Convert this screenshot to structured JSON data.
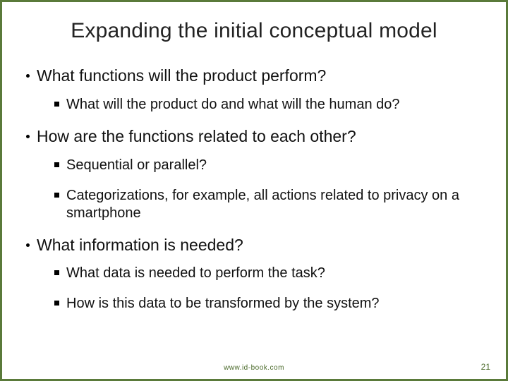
{
  "slide": {
    "border_color": "#5a7a3a",
    "background_color": "#ffffff",
    "title": "Expanding the initial conceptual model",
    "title_fontsize": 30,
    "title_color": "#222222",
    "l1_fontsize": 23,
    "l2_fontsize": 20,
    "text_color": "#111111",
    "footer_color": "#4a6a2a",
    "bullets": [
      {
        "text": "What functions will the product perform?",
        "sub": [
          "What will the product do and what will the human do?"
        ]
      },
      {
        "text": "How are the functions related to each other?",
        "sub": [
          "Sequential or parallel?",
          "Categorizations, for example, all actions related to privacy on a smartphone"
        ]
      },
      {
        "text": "What information is needed?",
        "sub": [
          "What data is needed to perform the task?",
          "How is this data to be transformed by the system?"
        ]
      }
    ],
    "footer_url": "www.id-book.com",
    "page_number": "21"
  }
}
